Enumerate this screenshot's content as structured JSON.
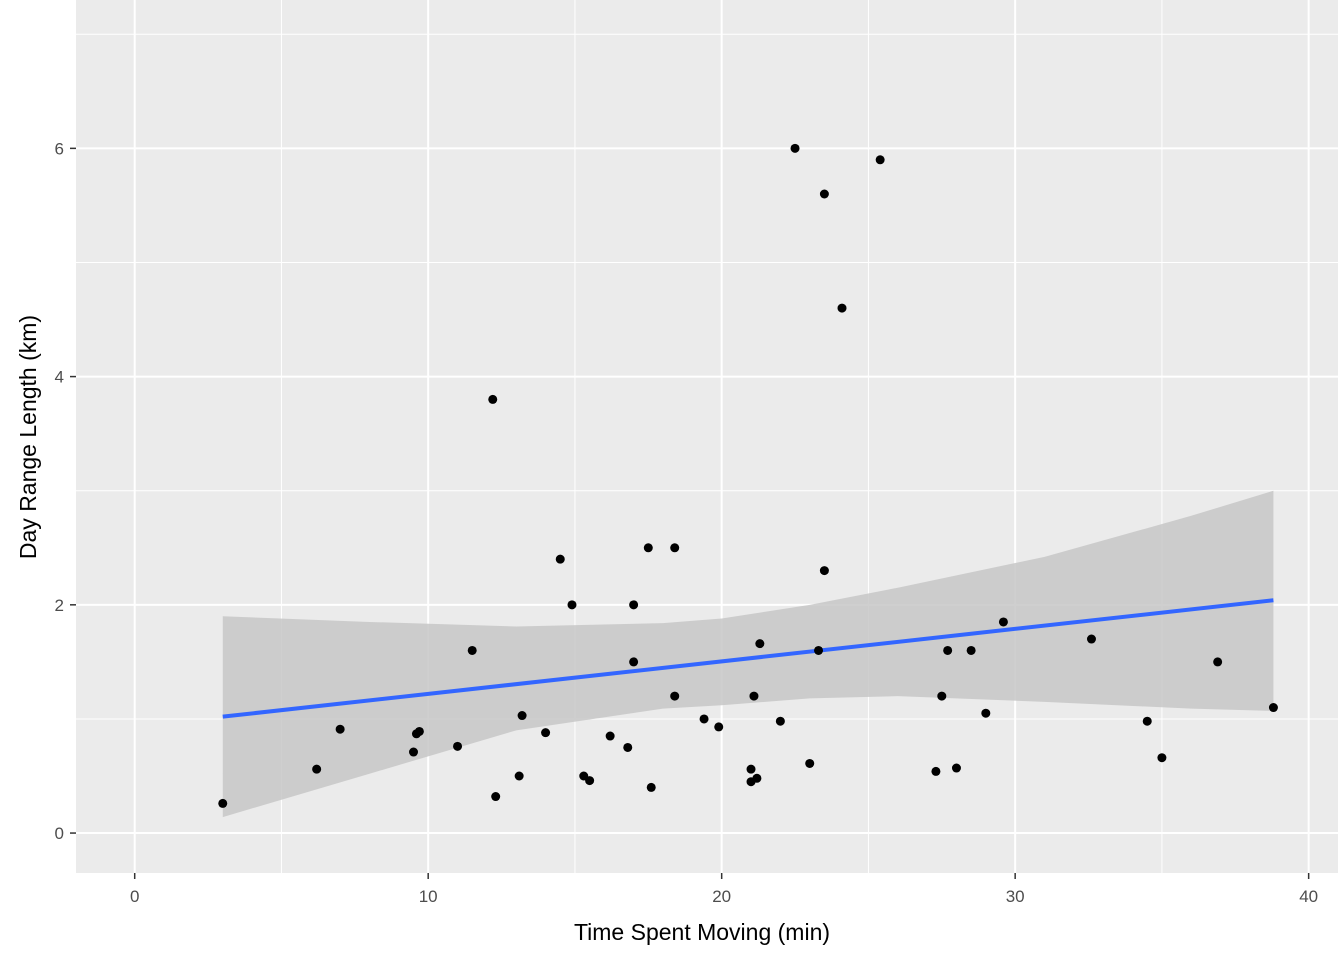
{
  "chart_data": {
    "type": "scatter",
    "xlabel": "Time Spent Moving (min)",
    "ylabel": "Day Range Length (km)",
    "xlim": [
      -2,
      41
    ],
    "ylim": [
      -0.35,
      7.3
    ],
    "x_ticks": [
      0,
      10,
      20,
      30,
      40
    ],
    "y_ticks": [
      0,
      2,
      4,
      6
    ],
    "grid": true,
    "panel_color": "#ebebeb",
    "grid_color": "#ffffff",
    "point_color": "#000000",
    "line_color": "#3366ff",
    "band_color": "#c7c7c7",
    "points": [
      [
        3.0,
        0.26
      ],
      [
        6.2,
        0.56
      ],
      [
        7.0,
        0.91
      ],
      [
        9.5,
        0.71
      ],
      [
        9.6,
        0.87
      ],
      [
        9.7,
        0.89
      ],
      [
        11.0,
        0.76
      ],
      [
        11.5,
        1.6
      ],
      [
        12.2,
        3.8
      ],
      [
        12.3,
        0.32
      ],
      [
        13.1,
        0.5
      ],
      [
        13.2,
        1.03
      ],
      [
        14.0,
        0.88
      ],
      [
        14.5,
        2.4
      ],
      [
        14.9,
        2.0
      ],
      [
        15.3,
        0.5
      ],
      [
        15.5,
        0.46
      ],
      [
        16.2,
        0.85
      ],
      [
        16.8,
        0.75
      ],
      [
        17.0,
        1.5
      ],
      [
        17.0,
        2.0
      ],
      [
        17.5,
        2.5
      ],
      [
        17.6,
        0.4
      ],
      [
        18.4,
        1.2
      ],
      [
        18.4,
        2.5
      ],
      [
        19.4,
        1.0
      ],
      [
        19.9,
        0.93
      ],
      [
        21.0,
        0.45
      ],
      [
        21.0,
        0.56
      ],
      [
        21.1,
        1.2
      ],
      [
        21.2,
        0.48
      ],
      [
        21.3,
        1.66
      ],
      [
        22.0,
        0.98
      ],
      [
        22.5,
        6.0
      ],
      [
        23.0,
        0.61
      ],
      [
        23.3,
        1.6
      ],
      [
        23.5,
        5.6
      ],
      [
        23.5,
        2.3
      ],
      [
        24.1,
        4.6
      ],
      [
        25.4,
        5.9
      ],
      [
        27.3,
        0.54
      ],
      [
        27.5,
        1.2
      ],
      [
        27.7,
        1.6
      ],
      [
        28.0,
        0.57
      ],
      [
        28.5,
        1.6
      ],
      [
        29.0,
        1.05
      ],
      [
        29.6,
        1.85
      ],
      [
        32.6,
        1.7
      ],
      [
        34.5,
        0.98
      ],
      [
        35.0,
        0.66
      ],
      [
        36.9,
        1.5
      ],
      [
        38.8,
        1.1
      ]
    ],
    "fit_line": [
      [
        3.0,
        1.02
      ],
      [
        38.8,
        2.04
      ]
    ],
    "confidence_band": {
      "x": [
        3,
        8,
        13,
        18,
        20,
        23,
        26,
        31,
        36,
        38.8
      ],
      "upper": [
        1.9,
        1.85,
        1.81,
        1.84,
        1.88,
        2.0,
        2.15,
        2.42,
        2.78,
        3.0
      ],
      "lower": [
        0.14,
        0.52,
        0.9,
        1.09,
        1.12,
        1.18,
        1.2,
        1.15,
        1.09,
        1.07
      ]
    }
  }
}
